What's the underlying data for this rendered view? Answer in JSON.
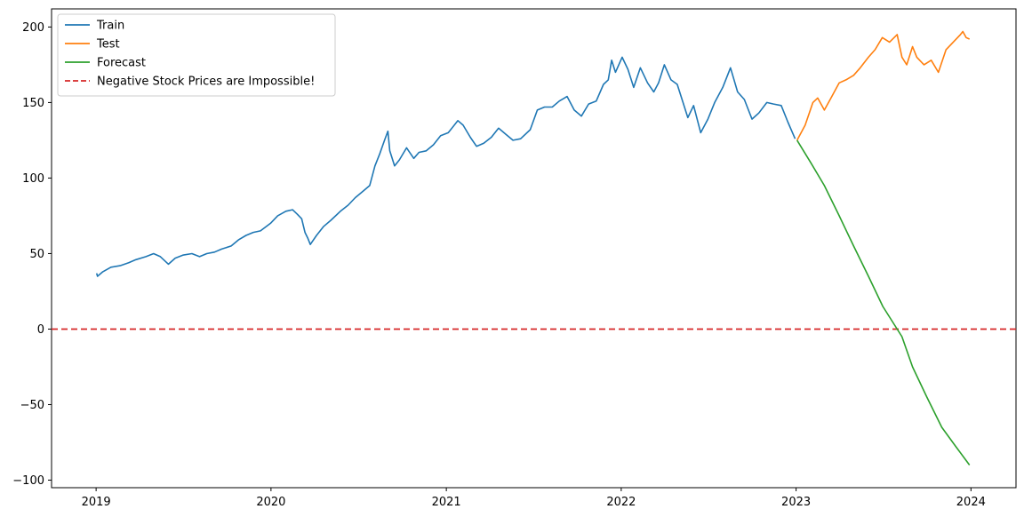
{
  "chart_data": {
    "type": "line",
    "title": "",
    "xlabel": "",
    "ylabel": "",
    "xlim": [
      "2018-09-30",
      "2024-04-04"
    ],
    "ylim": [
      -105,
      212
    ],
    "grid": false,
    "legend_position": "top-left",
    "x_ticks": [
      {
        "date": "2019-01-01",
        "label": "2019"
      },
      {
        "date": "2020-01-01",
        "label": "2020"
      },
      {
        "date": "2021-01-01",
        "label": "2021"
      },
      {
        "date": "2022-01-01",
        "label": "2022"
      },
      {
        "date": "2023-01-01",
        "label": "2023"
      },
      {
        "date": "2024-01-01",
        "label": "2024"
      }
    ],
    "y_ticks": [
      {
        "value": 200,
        "label": "200"
      },
      {
        "value": 150,
        "label": "150"
      },
      {
        "value": 100,
        "label": "100"
      },
      {
        "value": 50,
        "label": "50"
      },
      {
        "value": 0,
        "label": "0"
      },
      {
        "value": -50,
        "label": "−50"
      },
      {
        "value": -100,
        "label": "−100"
      }
    ],
    "series": [
      {
        "name": "Train",
        "color": "#1f77b4",
        "style": "solid",
        "points": [
          [
            "2019-01-02",
            37
          ],
          [
            "2019-01-04",
            35
          ],
          [
            "2019-01-15",
            38
          ],
          [
            "2019-02-01",
            41
          ],
          [
            "2019-02-20",
            42
          ],
          [
            "2019-03-10",
            44
          ],
          [
            "2019-03-25",
            46
          ],
          [
            "2019-04-15",
            48
          ],
          [
            "2019-05-01",
            50
          ],
          [
            "2019-05-15",
            48
          ],
          [
            "2019-06-01",
            43
          ],
          [
            "2019-06-15",
            47
          ],
          [
            "2019-07-01",
            49
          ],
          [
            "2019-07-20",
            50
          ],
          [
            "2019-08-05",
            48
          ],
          [
            "2019-08-20",
            50
          ],
          [
            "2019-09-05",
            51
          ],
          [
            "2019-09-20",
            53
          ],
          [
            "2019-10-10",
            55
          ],
          [
            "2019-10-25",
            59
          ],
          [
            "2019-11-10",
            62
          ],
          [
            "2019-11-25",
            64
          ],
          [
            "2019-12-10",
            65
          ],
          [
            "2019-12-31",
            70
          ],
          [
            "2020-01-15",
            75
          ],
          [
            "2020-02-01",
            78
          ],
          [
            "2020-02-15",
            79
          ],
          [
            "2020-02-25",
            76
          ],
          [
            "2020-03-05",
            73
          ],
          [
            "2020-03-12",
            64
          ],
          [
            "2020-03-18",
            60
          ],
          [
            "2020-03-23",
            56
          ],
          [
            "2020-04-05",
            62
          ],
          [
            "2020-04-20",
            68
          ],
          [
            "2020-05-05",
            72
          ],
          [
            "2020-05-25",
            78
          ],
          [
            "2020-06-10",
            82
          ],
          [
            "2020-06-25",
            87
          ],
          [
            "2020-07-10",
            91
          ],
          [
            "2020-07-25",
            95
          ],
          [
            "2020-08-05",
            108
          ],
          [
            "2020-08-15",
            116
          ],
          [
            "2020-08-25",
            125
          ],
          [
            "2020-09-01",
            131
          ],
          [
            "2020-09-05",
            118
          ],
          [
            "2020-09-15",
            108
          ],
          [
            "2020-09-25",
            112
          ],
          [
            "2020-10-10",
            120
          ],
          [
            "2020-10-25",
            113
          ],
          [
            "2020-11-05",
            117
          ],
          [
            "2020-11-20",
            118
          ],
          [
            "2020-12-05",
            122
          ],
          [
            "2020-12-20",
            128
          ],
          [
            "2021-01-05",
            130
          ],
          [
            "2021-01-25",
            138
          ],
          [
            "2021-02-05",
            135
          ],
          [
            "2021-02-20",
            127
          ],
          [
            "2021-03-05",
            121
          ],
          [
            "2021-03-20",
            123
          ],
          [
            "2021-04-05",
            127
          ],
          [
            "2021-04-20",
            133
          ],
          [
            "2021-05-05",
            129
          ],
          [
            "2021-05-20",
            125
          ],
          [
            "2021-06-05",
            126
          ],
          [
            "2021-06-25",
            132
          ],
          [
            "2021-07-10",
            145
          ],
          [
            "2021-07-25",
            147
          ],
          [
            "2021-08-10",
            147
          ],
          [
            "2021-08-25",
            151
          ],
          [
            "2021-09-10",
            154
          ],
          [
            "2021-09-25",
            145
          ],
          [
            "2021-10-10",
            141
          ],
          [
            "2021-10-25",
            149
          ],
          [
            "2021-11-10",
            151
          ],
          [
            "2021-11-25",
            162
          ],
          [
            "2021-12-05",
            165
          ],
          [
            "2021-12-12",
            178
          ],
          [
            "2021-12-20",
            170
          ],
          [
            "2022-01-03",
            180
          ],
          [
            "2022-01-15",
            172
          ],
          [
            "2022-01-27",
            160
          ],
          [
            "2022-02-10",
            173
          ],
          [
            "2022-02-25",
            163
          ],
          [
            "2022-03-10",
            157
          ],
          [
            "2022-03-20",
            163
          ],
          [
            "2022-04-01",
            175
          ],
          [
            "2022-04-15",
            165
          ],
          [
            "2022-04-28",
            162
          ],
          [
            "2022-05-10",
            150
          ],
          [
            "2022-05-20",
            140
          ],
          [
            "2022-06-01",
            148
          ],
          [
            "2022-06-16",
            130
          ],
          [
            "2022-07-01",
            139
          ],
          [
            "2022-07-15",
            150
          ],
          [
            "2022-08-01",
            160
          ],
          [
            "2022-08-17",
            173
          ],
          [
            "2022-09-01",
            157
          ],
          [
            "2022-09-15",
            152
          ],
          [
            "2022-10-01",
            139
          ],
          [
            "2022-10-15",
            143
          ],
          [
            "2022-11-01",
            150
          ],
          [
            "2022-11-15",
            149
          ],
          [
            "2022-12-01",
            148
          ],
          [
            "2022-12-15",
            137
          ],
          [
            "2022-12-30",
            126
          ]
        ]
      },
      {
        "name": "Test",
        "color": "#ff7f0e",
        "style": "solid",
        "points": [
          [
            "2023-01-03",
            125
          ],
          [
            "2023-01-20",
            135
          ],
          [
            "2023-02-05",
            150
          ],
          [
            "2023-02-15",
            153
          ],
          [
            "2023-03-01",
            145
          ],
          [
            "2023-03-15",
            153
          ],
          [
            "2023-04-01",
            163
          ],
          [
            "2023-04-15",
            165
          ],
          [
            "2023-05-01",
            168
          ],
          [
            "2023-05-15",
            173
          ],
          [
            "2023-06-01",
            180
          ],
          [
            "2023-06-15",
            185
          ],
          [
            "2023-06-30",
            193
          ],
          [
            "2023-07-15",
            190
          ],
          [
            "2023-07-31",
            195
          ],
          [
            "2023-08-10",
            180
          ],
          [
            "2023-08-20",
            175
          ],
          [
            "2023-09-01",
            187
          ],
          [
            "2023-09-10",
            180
          ],
          [
            "2023-09-25",
            175
          ],
          [
            "2023-10-10",
            178
          ],
          [
            "2023-10-25",
            170
          ],
          [
            "2023-11-10",
            185
          ],
          [
            "2023-11-25",
            190
          ],
          [
            "2023-12-10",
            195
          ],
          [
            "2023-12-15",
            197
          ],
          [
            "2023-12-22",
            193
          ],
          [
            "2023-12-29",
            192
          ]
        ]
      },
      {
        "name": "Forecast",
        "color": "#2ca02c",
        "style": "solid",
        "points": [
          [
            "2023-01-03",
            125
          ],
          [
            "2023-02-01",
            110
          ],
          [
            "2023-03-01",
            95
          ],
          [
            "2023-04-01",
            75
          ],
          [
            "2023-05-01",
            55
          ],
          [
            "2023-06-01",
            35
          ],
          [
            "2023-07-01",
            15
          ],
          [
            "2023-08-10",
            -5
          ],
          [
            "2023-09-01",
            -25
          ],
          [
            "2023-10-01",
            -45
          ],
          [
            "2023-11-01",
            -65
          ],
          [
            "2023-12-01",
            -78
          ],
          [
            "2023-12-29",
            -90
          ]
        ]
      }
    ],
    "reference_lines": [
      {
        "name": "Negative Stock Prices are Impossible!",
        "y": 0,
        "color": "#d62728",
        "style": "dashed"
      }
    ]
  }
}
